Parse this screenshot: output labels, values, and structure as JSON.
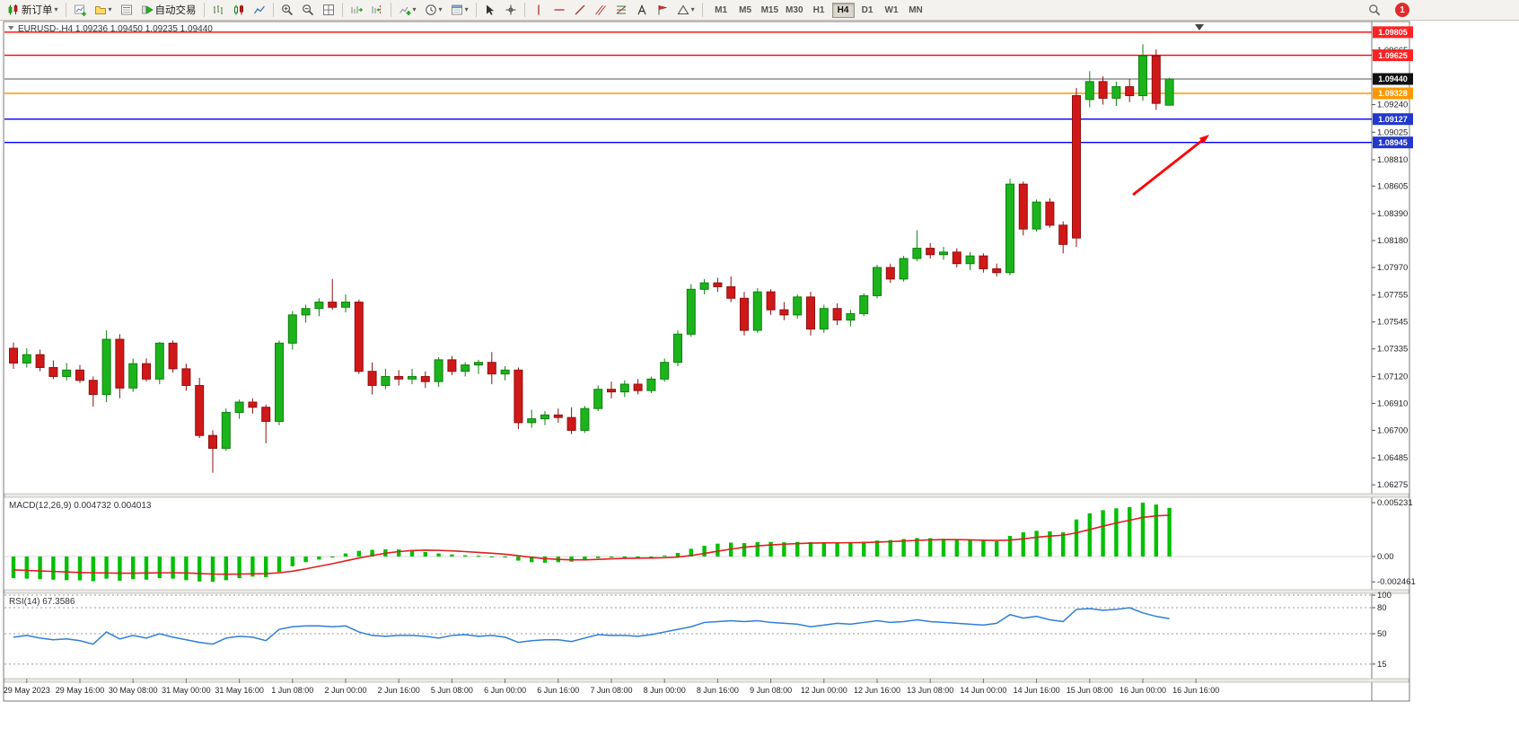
{
  "toolbar": {
    "new_order_label": "新订单",
    "autotrading_label": "自动交易",
    "timeframes": [
      "M1",
      "M5",
      "M15",
      "M30",
      "H1",
      "H4",
      "D1",
      "W1",
      "MN"
    ],
    "active_timeframe": "H4",
    "notification_count": "1"
  },
  "colors": {
    "candle_up": "#1cb41c",
    "candle_up_stroke": "#0d800d",
    "candle_down": "#d01818",
    "candle_down_stroke": "#8f1010",
    "macd_hist": "#00c000",
    "macd_signal": "#e01f1f",
    "rsi_line": "#2f7ed8",
    "arrow": "#ff0000",
    "level_red": "#ff0000",
    "level_orange": "#ff9800",
    "level_blue": "#0000ee",
    "current_price_line": "#555555"
  },
  "chart_data": {
    "type": "candlestick",
    "symbol": "EURUSD-",
    "period": "H4",
    "title": "EURUSD-,H4  1.09236 1.09450 1.09235 1.09440",
    "quote": {
      "open": "1.09236",
      "high": "1.09450",
      "low": "1.09235",
      "close": "1.09440"
    },
    "levels": [
      {
        "label": "1.09805",
        "price": 1.09805,
        "color": "#ff0000",
        "badge": "#ff2222",
        "style": "solid"
      },
      {
        "label": "1.09625",
        "price": 1.09625,
        "color": "#ff0000",
        "badge": "#ff2222",
        "style": "solid"
      },
      {
        "label": "1.09440",
        "price": 1.0944,
        "color": "#555555",
        "badge": "#111111",
        "style": "current"
      },
      {
        "label": "1.09328",
        "price": 1.09328,
        "color": "#ff9800",
        "badge": "#ff9800",
        "style": "solid"
      },
      {
        "label": "1.09127",
        "price": 1.09127,
        "color": "#0000ee",
        "badge": "#2238cc",
        "style": "solid"
      },
      {
        "label": "1.08945",
        "price": 1.08945,
        "color": "#0000ee",
        "badge": "#2238cc",
        "style": "solid"
      }
    ],
    "y_ticks": [
      "1.09665",
      "1.09240",
      "1.09025",
      "1.08810",
      "1.08605",
      "1.08390",
      "1.08180",
      "1.07970",
      "1.07755",
      "1.07545",
      "1.07335",
      "1.07120",
      "1.06910",
      "1.06700",
      "1.06485",
      "1.06275"
    ],
    "time_labels": [
      "29 May 2023",
      "29 May 16:00",
      "30 May 08:00",
      "31 May 00:00",
      "31 May 16:00",
      "1 Jun 08:00",
      "2 Jun 00:00",
      "2 Jun 16:00",
      "5 Jun 08:00",
      "6 Jun 00:00",
      "6 Jun 16:00",
      "7 Jun 08:00",
      "8 Jun 00:00",
      "8 Jun 16:00",
      "9 Jun 08:00",
      "12 Jun 00:00",
      "12 Jun 16:00",
      "13 Jun 08:00",
      "14 Jun 00:00",
      "14 Jun 16:00",
      "15 Jun 08:00",
      "16 Jun 00:00",
      "16 Jun 16:00"
    ],
    "candles": [
      [
        1.0734,
        1.07385,
        1.0718,
        1.07225
      ],
      [
        1.07225,
        1.0734,
        1.0719,
        1.0729
      ],
      [
        1.0729,
        1.0733,
        1.0716,
        1.0719
      ],
      [
        1.0719,
        1.07245,
        1.071,
        1.0712
      ],
      [
        1.0712,
        1.07225,
        1.0709,
        1.0717
      ],
      [
        1.0717,
        1.0721,
        1.0707,
        1.0709
      ],
      [
        1.0709,
        1.0712,
        1.06885,
        1.0698
      ],
      [
        1.0698,
        1.0748,
        1.0692,
        1.0741
      ],
      [
        1.0741,
        1.0745,
        1.0695,
        1.0703
      ],
      [
        1.0703,
        1.0726,
        1.07,
        1.0722
      ],
      [
        1.0722,
        1.0726,
        1.0708,
        1.071
      ],
      [
        1.071,
        1.0739,
        1.0706,
        1.0738
      ],
      [
        1.0738,
        1.074,
        1.0715,
        1.0718
      ],
      [
        1.0718,
        1.0722,
        1.0701,
        1.0705
      ],
      [
        1.0705,
        1.0711,
        1.0664,
        1.0666
      ],
      [
        1.0666,
        1.067,
        1.0637,
        1.0656
      ],
      [
        1.0656,
        1.0687,
        1.0654,
        1.0684
      ],
      [
        1.0684,
        1.0694,
        1.0679,
        1.0692
      ],
      [
        1.0692,
        1.0695,
        1.0683,
        1.0688
      ],
      [
        1.0688,
        1.069,
        1.066,
        1.0677
      ],
      [
        1.0677,
        1.074,
        1.0674,
        1.0738
      ],
      [
        1.0738,
        1.0763,
        1.0733,
        1.076
      ],
      [
        1.076,
        1.0768,
        1.0754,
        1.0765
      ],
      [
        1.0765,
        1.0773,
        1.0759,
        1.077
      ],
      [
        1.077,
        1.0788,
        1.0764,
        1.0766
      ],
      [
        1.0766,
        1.0776,
        1.0762,
        1.077
      ],
      [
        1.077,
        1.0772,
        1.0714,
        1.0716
      ],
      [
        1.0716,
        1.0723,
        1.0698,
        1.0705
      ],
      [
        1.0705,
        1.0718,
        1.0702,
        1.0712
      ],
      [
        1.0712,
        1.0717,
        1.0705,
        1.071
      ],
      [
        1.071,
        1.0718,
        1.0706,
        1.0712
      ],
      [
        1.0712,
        1.0716,
        1.0703,
        1.0708
      ],
      [
        1.0708,
        1.0727,
        1.0704,
        1.0725
      ],
      [
        1.0725,
        1.0728,
        1.0713,
        1.0716
      ],
      [
        1.0716,
        1.0723,
        1.0712,
        1.0721
      ],
      [
        1.0721,
        1.0725,
        1.0714,
        1.0723
      ],
      [
        1.0723,
        1.0731,
        1.0706,
        1.0714
      ],
      [
        1.0714,
        1.072,
        1.0709,
        1.0717
      ],
      [
        1.0717,
        1.0719,
        1.0671,
        1.0676
      ],
      [
        1.0676,
        1.0686,
        1.0672,
        1.0679
      ],
      [
        1.0679,
        1.0685,
        1.0674,
        1.0682
      ],
      [
        1.0682,
        1.0687,
        1.0676,
        1.068
      ],
      [
        1.068,
        1.0688,
        1.0667,
        1.067
      ],
      [
        1.067,
        1.0689,
        1.0668,
        1.0687
      ],
      [
        1.0687,
        1.0705,
        1.0685,
        1.0702
      ],
      [
        1.0702,
        1.0708,
        1.0695,
        1.07
      ],
      [
        1.07,
        1.0709,
        1.0696,
        1.0706
      ],
      [
        1.0706,
        1.071,
        1.0698,
        1.0701
      ],
      [
        1.0701,
        1.0712,
        1.0699,
        1.071
      ],
      [
        1.071,
        1.0726,
        1.0708,
        1.0723
      ],
      [
        1.0723,
        1.0748,
        1.072,
        1.0745
      ],
      [
        1.0745,
        1.0784,
        1.0743,
        1.078
      ],
      [
        1.078,
        1.0788,
        1.0776,
        1.0785
      ],
      [
        1.0785,
        1.0789,
        1.0778,
        1.0782
      ],
      [
        1.0782,
        1.079,
        1.077,
        1.0773
      ],
      [
        1.0773,
        1.0778,
        1.0744,
        1.0748
      ],
      [
        1.0748,
        1.0781,
        1.0746,
        1.0778
      ],
      [
        1.0778,
        1.078,
        1.076,
        1.0764
      ],
      [
        1.0764,
        1.077,
        1.0756,
        1.076
      ],
      [
        1.076,
        1.0776,
        1.0757,
        1.0774
      ],
      [
        1.0774,
        1.0778,
        1.0744,
        1.0749
      ],
      [
        1.0749,
        1.0768,
        1.0746,
        1.0765
      ],
      [
        1.0765,
        1.0769,
        1.0752,
        1.0756
      ],
      [
        1.0756,
        1.0764,
        1.0751,
        1.0761
      ],
      [
        1.0761,
        1.0777,
        1.0759,
        1.0775
      ],
      [
        1.0775,
        1.0799,
        1.0773,
        1.0797
      ],
      [
        1.0797,
        1.08,
        1.0785,
        1.0788
      ],
      [
        1.0788,
        1.0806,
        1.0786,
        1.0804
      ],
      [
        1.0804,
        1.0826,
        1.0802,
        1.0812
      ],
      [
        1.0812,
        1.0816,
        1.0804,
        1.0807
      ],
      [
        1.0807,
        1.0813,
        1.0803,
        1.0809
      ],
      [
        1.0809,
        1.0812,
        1.0797,
        1.08
      ],
      [
        1.08,
        1.0809,
        1.0795,
        1.0806
      ],
      [
        1.0806,
        1.0808,
        1.0793,
        1.0796
      ],
      [
        1.0796,
        1.08,
        1.079,
        1.0793
      ],
      [
        1.0793,
        1.0866,
        1.0791,
        1.0862
      ],
      [
        1.0862,
        1.0864,
        1.0822,
        1.0827
      ],
      [
        1.0827,
        1.085,
        1.0825,
        1.0848
      ],
      [
        1.0848,
        1.0851,
        1.0828,
        1.083
      ],
      [
        1.083,
        1.0833,
        1.0808,
        1.0815
      ],
      [
        1.0931,
        1.0937,
        1.0813,
        1.082
      ],
      [
        1.0928,
        1.095,
        1.0922,
        1.0942
      ],
      [
        1.0942,
        1.0946,
        1.0924,
        1.0929
      ],
      [
        1.0929,
        1.0942,
        1.0923,
        1.0938
      ],
      [
        1.0938,
        1.0944,
        1.0926,
        1.0931
      ],
      [
        1.0931,
        1.0971,
        1.0927,
        1.0962
      ],
      [
        1.0962,
        1.0967,
        1.092,
        1.0925
      ],
      [
        1.09236,
        1.0945,
        1.09235,
        1.0944
      ]
    ],
    "macd": {
      "label": "MACD(12,26,9) 0.004732 0.004013",
      "y_ticks": [
        "0.005231",
        "0.00",
        "-0.002461"
      ],
      "histogram": [
        -0.0021,
        -0.00215,
        -0.0022,
        -0.00225,
        -0.0023,
        -0.00232,
        -0.0024,
        -0.00215,
        -0.00235,
        -0.0022,
        -0.00225,
        -0.0021,
        -0.00215,
        -0.0023,
        -0.00242,
        -0.00246,
        -0.0023,
        -0.0021,
        -0.00195,
        -0.002,
        -0.0015,
        -0.00095,
        -0.00055,
        -0.0003,
        -0.0001,
        0.0003,
        0.00055,
        0.00065,
        0.0007,
        0.00068,
        0.0006,
        0.00045,
        0.0003,
        0.0002,
        0.00012,
        8e-05,
        0.0,
        -0.0001,
        -0.0004,
        -0.00055,
        -0.0006,
        -0.00055,
        -0.0005,
        -0.00035,
        -0.00015,
        -0.0001,
        -0.00012,
        -0.00015,
        -0.0001,
        0.0001,
        0.00035,
        0.00075,
        0.00105,
        0.00125,
        0.00135,
        0.0013,
        0.0014,
        0.00142,
        0.00138,
        0.00142,
        0.0014,
        0.00138,
        0.00136,
        0.00138,
        0.00144,
        0.00155,
        0.0016,
        0.0017,
        0.0018,
        0.00178,
        0.00172,
        0.00165,
        0.0016,
        0.00152,
        0.00148,
        0.002,
        0.00235,
        0.0025,
        0.00245,
        0.00235,
        0.0036,
        0.0042,
        0.0045,
        0.00468,
        0.0048,
        0.00523,
        0.00505,
        0.00473
      ],
      "signal": [
        -0.0013,
        -0.00135,
        -0.0014,
        -0.00145,
        -0.0015,
        -0.00155,
        -0.00158,
        -0.0016,
        -0.00162,
        -0.00162,
        -0.0016,
        -0.00158,
        -0.00158,
        -0.0016,
        -0.00165,
        -0.0017,
        -0.00172,
        -0.0017,
        -0.00168,
        -0.00166,
        -0.00158,
        -0.00142,
        -0.0012,
        -0.00095,
        -0.0007,
        -0.00042,
        -0.00015,
        0.0001,
        0.00032,
        0.00048,
        0.00058,
        0.00062,
        0.0006,
        0.00055,
        0.00048,
        0.0004,
        0.00032,
        0.00022,
        8e-05,
        -8e-05,
        -0.0002,
        -0.00028,
        -0.00032,
        -0.00032,
        -0.00028,
        -0.00022,
        -0.00018,
        -0.00016,
        -0.00015,
        -0.00012,
        -5e-05,
        0.0001,
        0.0003,
        0.00052,
        0.00072,
        0.0009,
        0.00103,
        0.00113,
        0.0012,
        0.00126,
        0.0013,
        0.00132,
        0.00133,
        0.00134,
        0.00136,
        0.0014,
        0.00145,
        0.00151,
        0.00157,
        0.00162,
        0.00164,
        0.00164,
        0.00162,
        0.00159,
        0.00156,
        0.0016,
        0.00172,
        0.00187,
        0.00199,
        0.00207,
        0.0023,
        0.00262,
        0.00295,
        0.00326,
        0.00352,
        0.0038,
        0.00395,
        0.00401
      ]
    },
    "rsi": {
      "label": "RSI(14) 67.3586",
      "y_ticks": [
        "100",
        "80",
        "50",
        "15"
      ],
      "levels": [
        100,
        80,
        50,
        15
      ],
      "values": [
        46,
        48,
        45,
        43,
        44,
        42,
        38,
        52,
        44,
        48,
        45,
        50,
        46,
        43,
        40,
        38,
        45,
        47,
        46,
        42,
        55,
        58,
        59,
        59,
        58,
        59,
        52,
        48,
        47,
        48,
        48,
        47,
        45,
        48,
        49,
        47,
        48,
        46,
        40,
        42,
        43,
        43,
        41,
        45,
        49,
        48,
        48,
        47,
        49,
        52,
        55,
        58,
        63,
        64,
        65,
        64,
        65,
        63,
        62,
        61,
        58,
        60,
        62,
        61,
        63,
        65,
        63,
        64,
        66,
        64,
        63,
        62,
        61,
        60,
        62,
        72,
        68,
        70,
        66,
        64,
        78,
        79,
        77,
        78,
        80,
        74,
        70,
        67.36
      ]
    }
  }
}
